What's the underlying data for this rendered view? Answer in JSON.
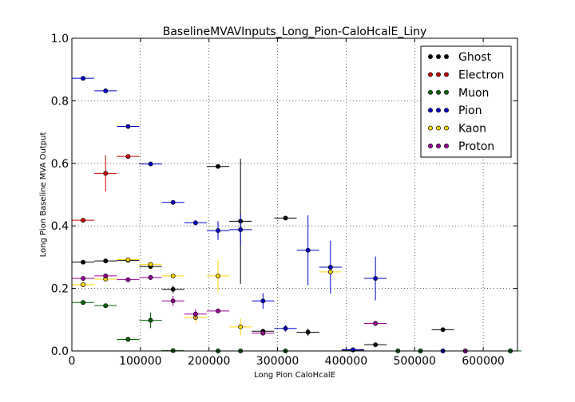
{
  "chart_data": {
    "type": "scatter",
    "title": "BaselineMVAVInputs_Long_Pion-CaloHcalE_Liny",
    "xlabel": "Long Pion CaloHcalE",
    "ylabel": "Long Pion Baseline MVA Output",
    "xlim": [
      0,
      650000
    ],
    "ylim": [
      0,
      1.0
    ],
    "x_ticks": [
      0,
      100000,
      200000,
      300000,
      400000,
      500000,
      600000
    ],
    "x_tick_labels": [
      "0",
      "100000",
      "200000",
      "300000",
      "400000",
      "500000",
      "600000"
    ],
    "y_ticks": [
      0.0,
      0.2,
      0.4,
      0.6,
      0.8,
      1.0
    ],
    "y_tick_labels": [
      "0.0",
      "0.2",
      "0.4",
      "0.6",
      "0.8",
      "1.0"
    ],
    "grid": true,
    "legend_position": "top-right",
    "x_bin_half_width": 16400,
    "series": [
      {
        "name": "Ghost",
        "color": "#000000",
        "points": [
          {
            "x": 16400,
            "y": 0.284,
            "e": 0
          },
          {
            "x": 49200,
            "y": 0.288,
            "e": 0
          },
          {
            "x": 82000,
            "y": 0.29,
            "e": 0
          },
          {
            "x": 114800,
            "y": 0.27,
            "e": 0
          },
          {
            "x": 147600,
            "y": 0.197,
            "e": 0.012
          },
          {
            "x": 213200,
            "y": 0.59,
            "e": 0
          },
          {
            "x": 246000,
            "y": 0.415,
            "e": 0.2
          },
          {
            "x": 278800,
            "y": 0.063,
            "e": 0
          },
          {
            "x": 311600,
            "y": 0.425,
            "e": 0
          },
          {
            "x": 344400,
            "y": 0.06,
            "e": 0.012
          },
          {
            "x": 410000,
            "y": 0.003,
            "e": 0
          },
          {
            "x": 442800,
            "y": 0.02,
            "e": 0
          },
          {
            "x": 541200,
            "y": 0.068,
            "e": 0
          }
        ]
      },
      {
        "name": "Electron",
        "color": "#cc0000",
        "points": [
          {
            "x": 16400,
            "y": 0.418,
            "e": 0
          },
          {
            "x": 49200,
            "y": 0.568,
            "e": 0.058
          },
          {
            "x": 82000,
            "y": 0.622,
            "e": 0
          }
        ]
      },
      {
        "name": "Muon",
        "color": "#006600",
        "points": [
          {
            "x": 16400,
            "y": 0.155,
            "e": 0
          },
          {
            "x": 49200,
            "y": 0.145,
            "e": 0
          },
          {
            "x": 82000,
            "y": 0.037,
            "e": 0
          },
          {
            "x": 114800,
            "y": 0.098,
            "e": 0.025
          },
          {
            "x": 147600,
            "y": 0.001,
            "e": 0
          },
          {
            "x": 213200,
            "y": 0.0,
            "e": 0
          },
          {
            "x": 246000,
            "y": 0.0,
            "e": 0
          },
          {
            "x": 311600,
            "y": 0.0,
            "e": 0
          },
          {
            "x": 475600,
            "y": 0.0,
            "e": 0
          },
          {
            "x": 508400,
            "y": 0.0,
            "e": 0
          },
          {
            "x": 639600,
            "y": 0.0,
            "e": 0
          }
        ]
      },
      {
        "name": "Pion",
        "color": "#0000cc",
        "points": [
          {
            "x": 16400,
            "y": 0.872,
            "e": 0
          },
          {
            "x": 49200,
            "y": 0.832,
            "e": 0
          },
          {
            "x": 82000,
            "y": 0.718,
            "e": 0
          },
          {
            "x": 114800,
            "y": 0.598,
            "e": 0
          },
          {
            "x": 147600,
            "y": 0.475,
            "e": 0
          },
          {
            "x": 180400,
            "y": 0.41,
            "e": 0.008
          },
          {
            "x": 213200,
            "y": 0.385,
            "e": 0.03
          },
          {
            "x": 246000,
            "y": 0.388,
            "e": 0.05
          },
          {
            "x": 278800,
            "y": 0.16,
            "e": 0.025
          },
          {
            "x": 311600,
            "y": 0.072,
            "e": 0.01
          },
          {
            "x": 344400,
            "y": 0.322,
            "e": 0.112
          },
          {
            "x": 377200,
            "y": 0.268,
            "e": 0.085
          },
          {
            "x": 410000,
            "y": 0.004,
            "e": 0
          },
          {
            "x": 442800,
            "y": 0.232,
            "e": 0.07
          },
          {
            "x": 541200,
            "y": 0.0,
            "e": 0
          },
          {
            "x": 574000,
            "y": 0.0,
            "e": 0
          }
        ]
      },
      {
        "name": "Kaon",
        "color": "#ffd700",
        "points": [
          {
            "x": 16400,
            "y": 0.212,
            "e": 0
          },
          {
            "x": 49200,
            "y": 0.23,
            "e": 0
          },
          {
            "x": 82000,
            "y": 0.292,
            "e": 0
          },
          {
            "x": 114800,
            "y": 0.277,
            "e": 0
          },
          {
            "x": 147600,
            "y": 0.24,
            "e": 0
          },
          {
            "x": 180400,
            "y": 0.107,
            "e": 0.018
          },
          {
            "x": 213200,
            "y": 0.24,
            "e": 0.052
          },
          {
            "x": 246000,
            "y": 0.077,
            "e": 0.027
          },
          {
            "x": 377200,
            "y": 0.253,
            "e": 0
          }
        ]
      },
      {
        "name": "Proton",
        "color": "#990099",
        "points": [
          {
            "x": 16400,
            "y": 0.232,
            "e": 0
          },
          {
            "x": 49200,
            "y": 0.24,
            "e": 0
          },
          {
            "x": 82000,
            "y": 0.228,
            "e": 0
          },
          {
            "x": 114800,
            "y": 0.235,
            "e": 0
          },
          {
            "x": 147600,
            "y": 0.16,
            "e": 0.016
          },
          {
            "x": 180400,
            "y": 0.118,
            "e": 0.015
          },
          {
            "x": 213200,
            "y": 0.128,
            "e": 0
          },
          {
            "x": 278800,
            "y": 0.057,
            "e": 0
          },
          {
            "x": 442800,
            "y": 0.088,
            "e": 0
          },
          {
            "x": 574000,
            "y": 0.0,
            "e": 0
          }
        ]
      }
    ]
  }
}
